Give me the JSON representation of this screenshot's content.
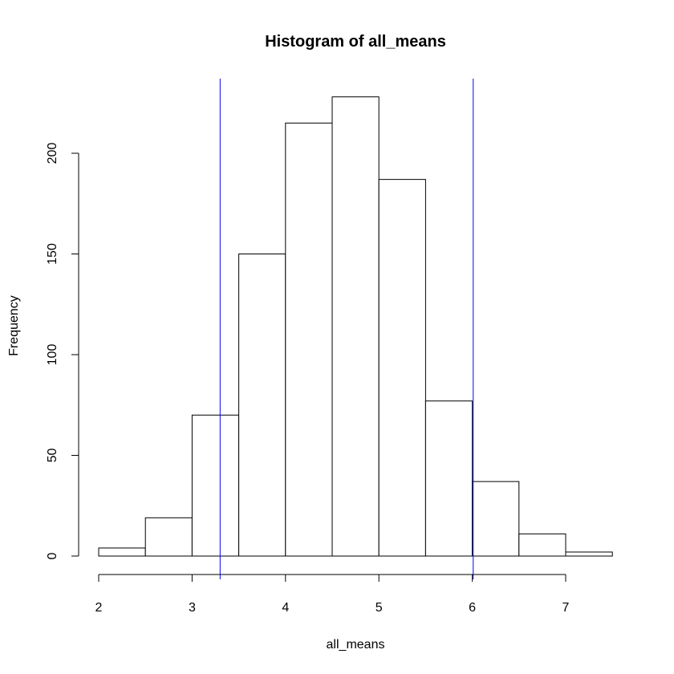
{
  "chart_data": {
    "type": "bar",
    "title": "Histogram of all_means",
    "xlabel": "all_means",
    "ylabel": "Frequency",
    "bins": [
      {
        "start": 2.0,
        "end": 2.5,
        "count": 4
      },
      {
        "start": 2.5,
        "end": 3.0,
        "count": 19
      },
      {
        "start": 3.0,
        "end": 3.5,
        "count": 70
      },
      {
        "start": 3.5,
        "end": 4.0,
        "count": 150
      },
      {
        "start": 4.0,
        "end": 4.5,
        "count": 215
      },
      {
        "start": 4.5,
        "end": 5.0,
        "count": 228
      },
      {
        "start": 5.0,
        "end": 5.5,
        "count": 187
      },
      {
        "start": 5.5,
        "end": 6.0,
        "count": 77
      },
      {
        "start": 6.0,
        "end": 6.5,
        "count": 37
      },
      {
        "start": 6.5,
        "end": 7.0,
        "count": 11
      },
      {
        "start": 7.0,
        "end": 7.5,
        "count": 2
      }
    ],
    "xlim": [
      2,
      7.5
    ],
    "ylim": [
      0,
      228
    ],
    "xticks": [
      2,
      3,
      4,
      5,
      6,
      7
    ],
    "yticks": [
      0,
      50,
      100,
      150,
      200
    ],
    "vlines": [
      {
        "x": 3.3,
        "color": "#0000ff"
      },
      {
        "x": 6.01,
        "color": "#0000ff"
      }
    ],
    "bar_fill": "#ffffff",
    "bar_stroke": "#000000",
    "grid": false,
    "legend": "none"
  }
}
